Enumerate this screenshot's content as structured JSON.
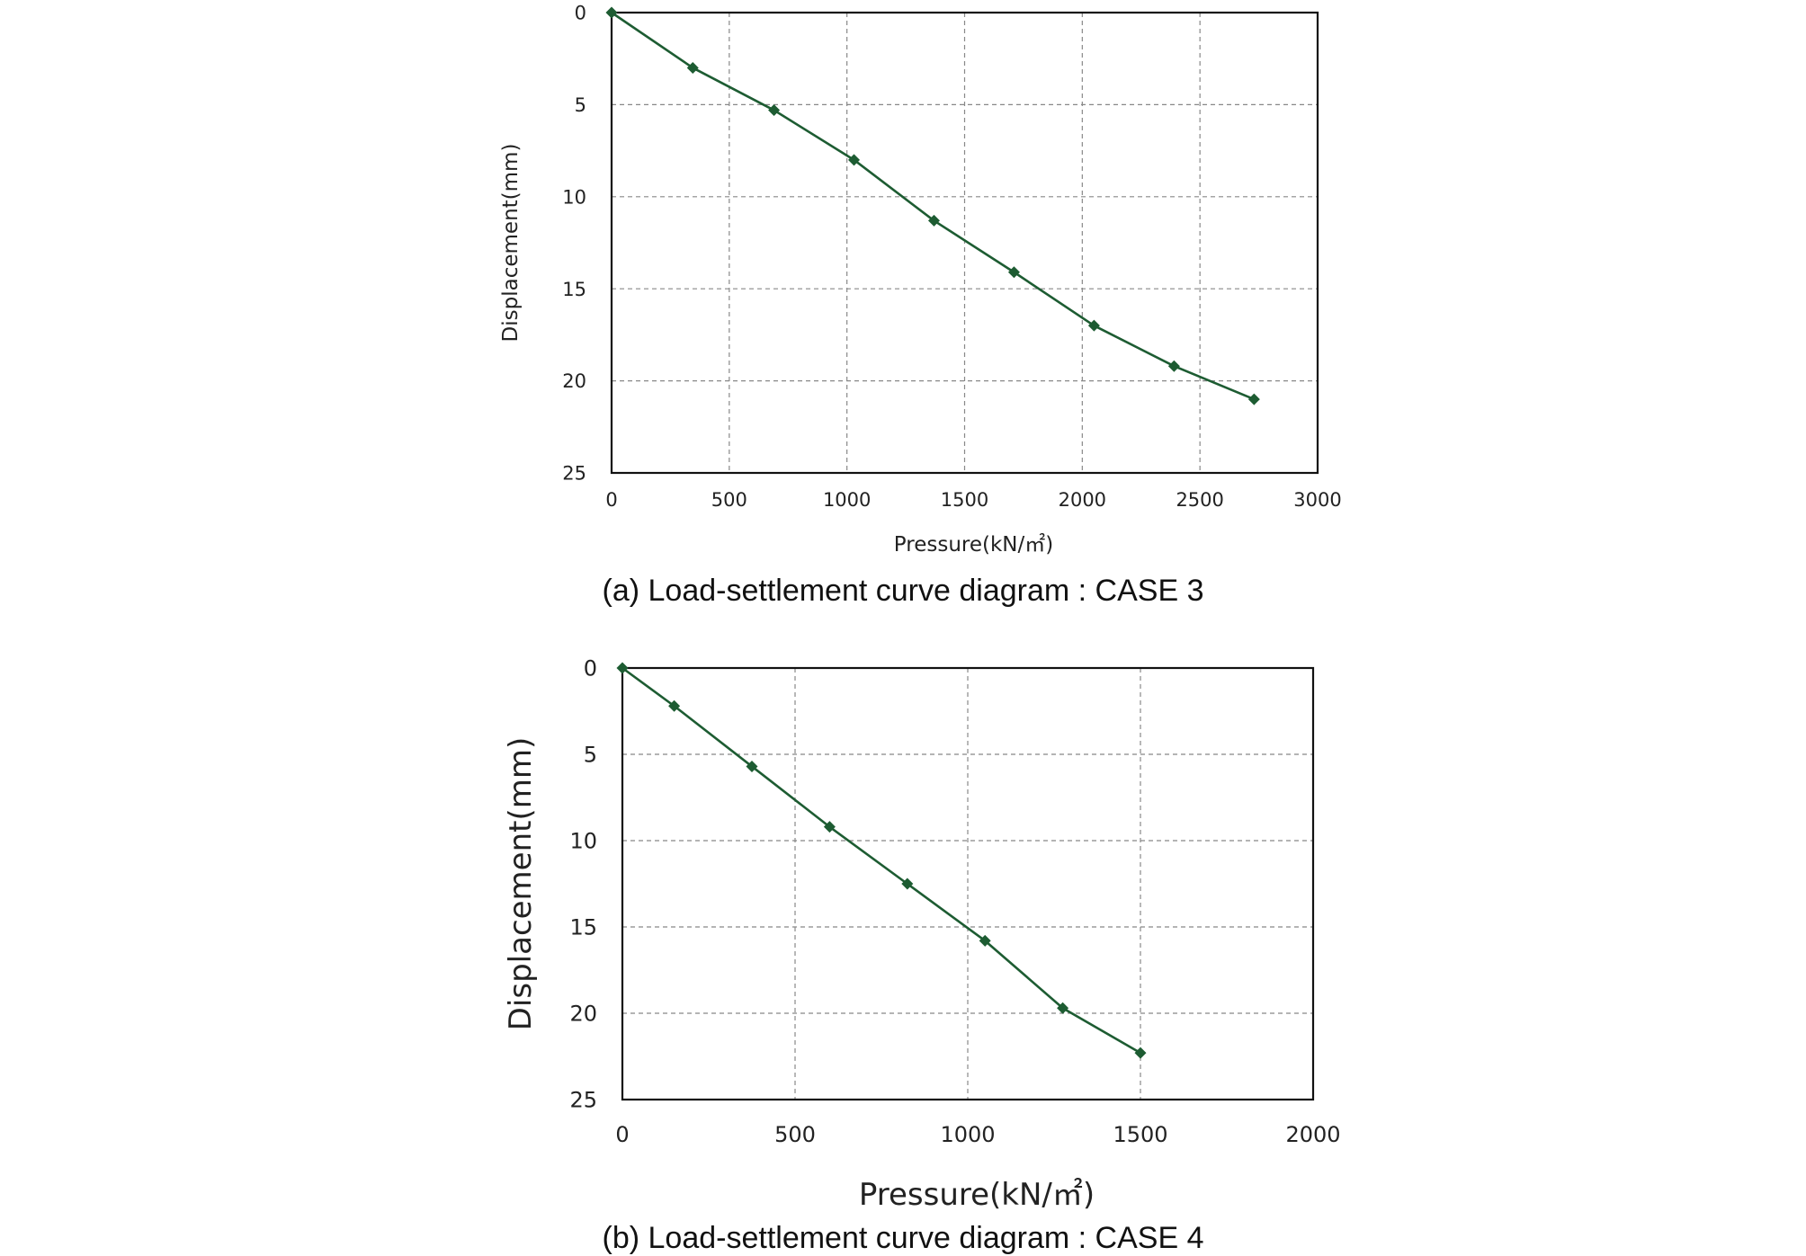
{
  "colors": {
    "line": "#1d5c32",
    "marker": "#1d5c32",
    "grid": "#888888",
    "frame": "#111111"
  },
  "chart_data": [
    {
      "type": "line",
      "caption": "(a) Load-settlement curve diagram : CASE 3",
      "xlabel": "Pressure(kN/㎡)",
      "ylabel": "Displacement(mm)",
      "xlim": [
        0,
        3000
      ],
      "ylim": [
        0,
        25
      ],
      "y_inverted": true,
      "grid": true,
      "xticks": [
        "0",
        "500",
        "1000",
        "1500",
        "2000",
        "2500",
        "3000"
      ],
      "yticks": [
        "0",
        "5",
        "10",
        "15",
        "20",
        "25"
      ],
      "series": [
        {
          "name": "CASE 3",
          "marker": "diamond",
          "x": [
            0,
            345,
            690,
            1030,
            1370,
            1710,
            2050,
            2390,
            2730
          ],
          "y": [
            0,
            3.0,
            5.3,
            8.0,
            11.3,
            14.1,
            17.0,
            19.2,
            21.0
          ]
        }
      ]
    },
    {
      "type": "line",
      "caption": "(b) Load-settlement curve diagram : CASE 4",
      "xlabel": "Pressure(kN/㎡)",
      "ylabel": "Displacement(mm)",
      "xlim": [
        0,
        2000
      ],
      "ylim": [
        0,
        25
      ],
      "y_inverted": true,
      "grid": true,
      "xticks": [
        "0",
        "500",
        "1000",
        "1500",
        "2000"
      ],
      "yticks": [
        "0",
        "5",
        "10",
        "15",
        "20",
        "25"
      ],
      "series": [
        {
          "name": "CASE 4",
          "marker": "diamond",
          "x": [
            0,
            150,
            375,
            600,
            825,
            1050,
            1275,
            1500
          ],
          "y": [
            0,
            2.2,
            5.7,
            9.2,
            12.5,
            15.8,
            19.7,
            22.3
          ]
        }
      ]
    }
  ]
}
